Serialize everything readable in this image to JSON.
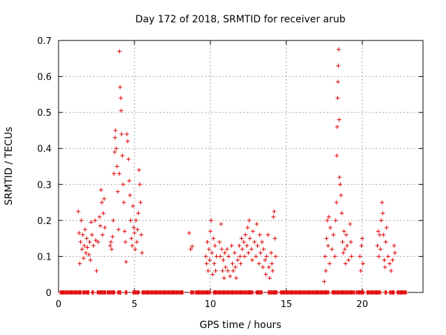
{
  "chart_data": {
    "type": "scatter",
    "title": "Day 172 of 2018, SRMTID for receiver arub",
    "xlabel": "GPS time / hours",
    "ylabel": "SRMTID / TECUs",
    "xlim": [
      0,
      24
    ],
    "ylim": [
      0,
      0.7
    ],
    "x_ticks": [
      0,
      5,
      10,
      15,
      20
    ],
    "y_ticks": [
      0,
      0.1,
      0.2,
      0.3,
      0.4,
      0.5,
      0.6,
      0.7
    ],
    "x_tick_labels": [
      "0",
      "5",
      "10",
      "15",
      "20"
    ],
    "y_tick_labels": [
      "0",
      "0.1",
      "0.2",
      "0.3",
      "0.4",
      "0.5",
      "0.6",
      "0.7"
    ],
    "grid": true,
    "marker": "+",
    "color": "#e00000",
    "series": [
      {
        "name": "SRMTID",
        "points": [
          [
            1.3,
            0.225
          ],
          [
            1.35,
            0.165
          ],
          [
            1.4,
            0.08
          ],
          [
            1.45,
            0.14
          ],
          [
            1.5,
            0.2
          ],
          [
            1.55,
            0.12
          ],
          [
            1.6,
            0.16
          ],
          [
            1.65,
            0.095
          ],
          [
            1.7,
            0.13
          ],
          [
            1.75,
            0.175
          ],
          [
            1.8,
            0.11
          ],
          [
            1.85,
            0.15
          ],
          [
            1.9,
            0.125
          ],
          [
            2.0,
            0.105
          ],
          [
            2.05,
            0.14
          ],
          [
            2.1,
            0.09
          ],
          [
            2.15,
            0.195
          ],
          [
            2.2,
            0.16
          ],
          [
            2.3,
            0.13
          ],
          [
            2.4,
            0.2
          ],
          [
            2.45,
            0.145
          ],
          [
            2.5,
            0.06
          ],
          [
            2.6,
            0.14
          ],
          [
            2.7,
            0.21
          ],
          [
            2.75,
            0.185
          ],
          [
            2.8,
            0.285
          ],
          [
            2.85,
            0.25
          ],
          [
            2.9,
            0.16
          ],
          [
            2.95,
            0.22
          ],
          [
            3.0,
            0.26
          ],
          [
            3.05,
            0.18
          ],
          [
            3.4,
            0.13
          ],
          [
            3.45,
            0.14
          ],
          [
            3.5,
            0.12
          ],
          [
            3.55,
            0.155
          ],
          [
            3.6,
            0.2
          ],
          [
            3.65,
            0.33
          ],
          [
            3.7,
            0.39
          ],
          [
            3.72,
            0.43
          ],
          [
            3.75,
            0.45
          ],
          [
            3.8,
            0.4
          ],
          [
            3.85,
            0.35
          ],
          [
            3.9,
            0.28
          ],
          [
            3.95,
            0.175
          ],
          [
            4.0,
            0.33
          ],
          [
            4.02,
            0.67
          ],
          [
            4.05,
            0.57
          ],
          [
            4.1,
            0.54
          ],
          [
            4.12,
            0.505
          ],
          [
            4.15,
            0.44
          ],
          [
            4.2,
            0.38
          ],
          [
            4.25,
            0.3
          ],
          [
            4.3,
            0.25
          ],
          [
            4.35,
            0.17
          ],
          [
            4.4,
            0.14
          ],
          [
            4.45,
            0.085
          ],
          [
            4.5,
            0.44
          ],
          [
            4.55,
            0.42
          ],
          [
            4.6,
            0.37
          ],
          [
            4.65,
            0.31
          ],
          [
            4.7,
            0.27
          ],
          [
            4.75,
            0.2
          ],
          [
            4.8,
            0.15
          ],
          [
            4.85,
            0.13
          ],
          [
            4.9,
            0.24
          ],
          [
            4.95,
            0.18
          ],
          [
            5.0,
            0.165
          ],
          [
            5.05,
            0.12
          ],
          [
            5.1,
            0.2
          ],
          [
            5.15,
            0.14
          ],
          [
            5.2,
            0.175
          ],
          [
            5.25,
            0.22
          ],
          [
            5.3,
            0.34
          ],
          [
            5.35,
            0.3
          ],
          [
            5.4,
            0.25
          ],
          [
            5.45,
            0.16
          ],
          [
            5.5,
            0.11
          ],
          [
            8.6,
            0.165
          ],
          [
            8.7,
            0.12
          ],
          [
            8.8,
            0.128
          ],
          [
            9.7,
            0.1
          ],
          [
            9.75,
            0.08
          ],
          [
            9.8,
            0.14
          ],
          [
            9.85,
            0.06
          ],
          [
            9.9,
            0.12
          ],
          [
            9.95,
            0.09
          ],
          [
            10.0,
            0.17
          ],
          [
            10.05,
            0.2
          ],
          [
            10.1,
            0.11
          ],
          [
            10.15,
            0.05
          ],
          [
            10.2,
            0.15
          ],
          [
            10.25,
            0.08
          ],
          [
            10.3,
            0.13
          ],
          [
            10.35,
            0.06
          ],
          [
            10.4,
            0.1
          ],
          [
            10.6,
            0.14
          ],
          [
            10.65,
            0.1
          ],
          [
            10.7,
            0.19
          ],
          [
            10.75,
            0.12
          ],
          [
            10.8,
            0.06
          ],
          [
            10.85,
            0.09
          ],
          [
            10.9,
            0.04
          ],
          [
            10.95,
            0.11
          ],
          [
            11.0,
            0.07
          ],
          [
            11.1,
            0.12
          ],
          [
            11.15,
            0.06
          ],
          [
            11.2,
            0.1
          ],
          [
            11.3,
            0.045
          ],
          [
            11.4,
            0.13
          ],
          [
            11.45,
            0.08
          ],
          [
            11.5,
            0.06
          ],
          [
            11.6,
            0.11
          ],
          [
            11.65,
            0.07
          ],
          [
            11.7,
            0.04
          ],
          [
            11.8,
            0.09
          ],
          [
            11.9,
            0.13
          ],
          [
            11.95,
            0.1
          ],
          [
            12.0,
            0.08
          ],
          [
            12.05,
            0.15
          ],
          [
            12.1,
            0.12
          ],
          [
            12.2,
            0.14
          ],
          [
            12.25,
            0.1
          ],
          [
            12.3,
            0.16
          ],
          [
            12.4,
            0.13
          ],
          [
            12.45,
            0.18
          ],
          [
            12.5,
            0.11
          ],
          [
            12.55,
            0.2
          ],
          [
            12.6,
            0.15
          ],
          [
            12.7,
            0.12
          ],
          [
            12.75,
            0.09
          ],
          [
            12.8,
            0.17
          ],
          [
            12.9,
            0.14
          ],
          [
            13.0,
            0.1
          ],
          [
            13.05,
            0.19
          ],
          [
            13.1,
            0.13
          ],
          [
            13.2,
            0.08
          ],
          [
            13.25,
            0.16
          ],
          [
            13.3,
            0.11
          ],
          [
            13.4,
            0.14
          ],
          [
            13.45,
            0.07
          ],
          [
            13.5,
            0.12
          ],
          [
            13.6,
            0.09
          ],
          [
            13.65,
            0.05
          ],
          [
            13.7,
            0.1
          ],
          [
            13.8,
            0.16
          ],
          [
            13.85,
            0.07
          ],
          [
            13.9,
            0.04
          ],
          [
            14.0,
            0.11
          ],
          [
            14.05,
            0.08
          ],
          [
            14.1,
            0.06
          ],
          [
            14.15,
            0.21
          ],
          [
            14.2,
            0.225
          ],
          [
            14.25,
            0.15
          ],
          [
            14.3,
            0.1
          ],
          [
            17.5,
            0.03
          ],
          [
            17.55,
            0.1
          ],
          [
            17.6,
            0.06
          ],
          [
            17.65,
            0.15
          ],
          [
            17.7,
            0.2
          ],
          [
            17.75,
            0.13
          ],
          [
            17.8,
            0.21
          ],
          [
            17.85,
            0.08
          ],
          [
            17.9,
            0.18
          ],
          [
            18.0,
            0.12
          ],
          [
            18.1,
            0.16
          ],
          [
            18.2,
            0.1
          ],
          [
            18.25,
            0.2
          ],
          [
            18.3,
            0.25
          ],
          [
            18.32,
            0.38
          ],
          [
            18.35,
            0.46
          ],
          [
            18.38,
            0.54
          ],
          [
            18.4,
            0.585
          ],
          [
            18.42,
            0.63
          ],
          [
            18.45,
            0.675
          ],
          [
            18.48,
            0.48
          ],
          [
            18.5,
            0.32
          ],
          [
            18.55,
            0.3
          ],
          [
            18.6,
            0.27
          ],
          [
            18.65,
            0.22
          ],
          [
            18.7,
            0.14
          ],
          [
            18.75,
            0.11
          ],
          [
            18.8,
            0.17
          ],
          [
            18.85,
            0.12
          ],
          [
            18.9,
            0.08
          ],
          [
            18.95,
            0.16
          ],
          [
            19.0,
            0.13
          ],
          [
            19.1,
            0.09
          ],
          [
            19.2,
            0.19
          ],
          [
            19.25,
            0.14
          ],
          [
            19.3,
            0.1
          ],
          [
            19.85,
            0.1
          ],
          [
            19.9,
            0.06
          ],
          [
            19.95,
            0.13
          ],
          [
            20.0,
            0.15
          ],
          [
            20.05,
            0.08
          ],
          [
            21.0,
            0.13
          ],
          [
            21.05,
            0.17
          ],
          [
            21.1,
            0.1
          ],
          [
            21.15,
            0.16
          ],
          [
            21.2,
            0.12
          ],
          [
            21.25,
            0.2
          ],
          [
            21.3,
            0.25
          ],
          [
            21.35,
            0.22
          ],
          [
            21.4,
            0.16
          ],
          [
            21.45,
            0.09
          ],
          [
            21.5,
            0.07
          ],
          [
            21.55,
            0.14
          ],
          [
            21.6,
            0.18
          ],
          [
            21.7,
            0.1
          ],
          [
            21.8,
            0.08
          ],
          [
            21.9,
            0.06
          ],
          [
            22.0,
            0.09
          ],
          [
            22.1,
            0.13
          ],
          [
            22.15,
            0.11
          ]
        ],
        "zero_segments": [
          [
            0.1,
            1.5
          ],
          [
            1.6,
            2.0
          ],
          [
            2.2,
            2.3
          ],
          [
            2.55,
            3.1
          ],
          [
            3.2,
            3.7
          ],
          [
            3.9,
            4.1
          ],
          [
            4.4,
            4.5
          ],
          [
            4.9,
            5.3
          ],
          [
            5.5,
            8.2
          ],
          [
            8.7,
            8.9
          ],
          [
            9.0,
            10.0
          ],
          [
            10.2,
            12.8
          ],
          [
            13.0,
            13.4
          ],
          [
            13.8,
            14.4
          ],
          [
            14.6,
            17.8
          ],
          [
            18.0,
            19.5
          ],
          [
            19.6,
            20.1
          ],
          [
            20.3,
            21.2
          ],
          [
            21.5,
            21.6
          ],
          [
            21.8,
            22.1
          ],
          [
            22.3,
            22.9
          ]
        ]
      }
    ]
  }
}
